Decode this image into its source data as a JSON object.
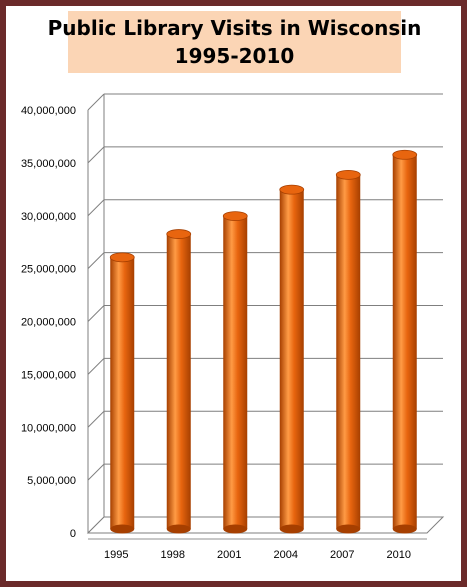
{
  "chart_data": {
    "type": "bar",
    "title": "Public Library Visits in Wisconsin",
    "subtitle": "1995-2010",
    "categories": [
      "1995",
      "1998",
      "2001",
      "2004",
      "2007",
      "2010"
    ],
    "values": [
      25500000,
      27700000,
      29400000,
      31900000,
      33300000,
      35200000
    ],
    "y_ticks": [
      "0",
      "5,000,000",
      "10,000,000",
      "15,000,000",
      "20,000,000",
      "25,000,000",
      "30,000,000",
      "35,000,000",
      "40,000,000"
    ],
    "ylim": [
      0,
      40000000
    ],
    "grid": true,
    "legend": "none",
    "colors": {
      "bar": "#e8650f",
      "bar_dark": "#a63f00",
      "bar_light": "#ff9b45",
      "title_bg": "#fbd5b5",
      "frame": "#6b2a2a",
      "grid": "#7f7f7f"
    }
  }
}
